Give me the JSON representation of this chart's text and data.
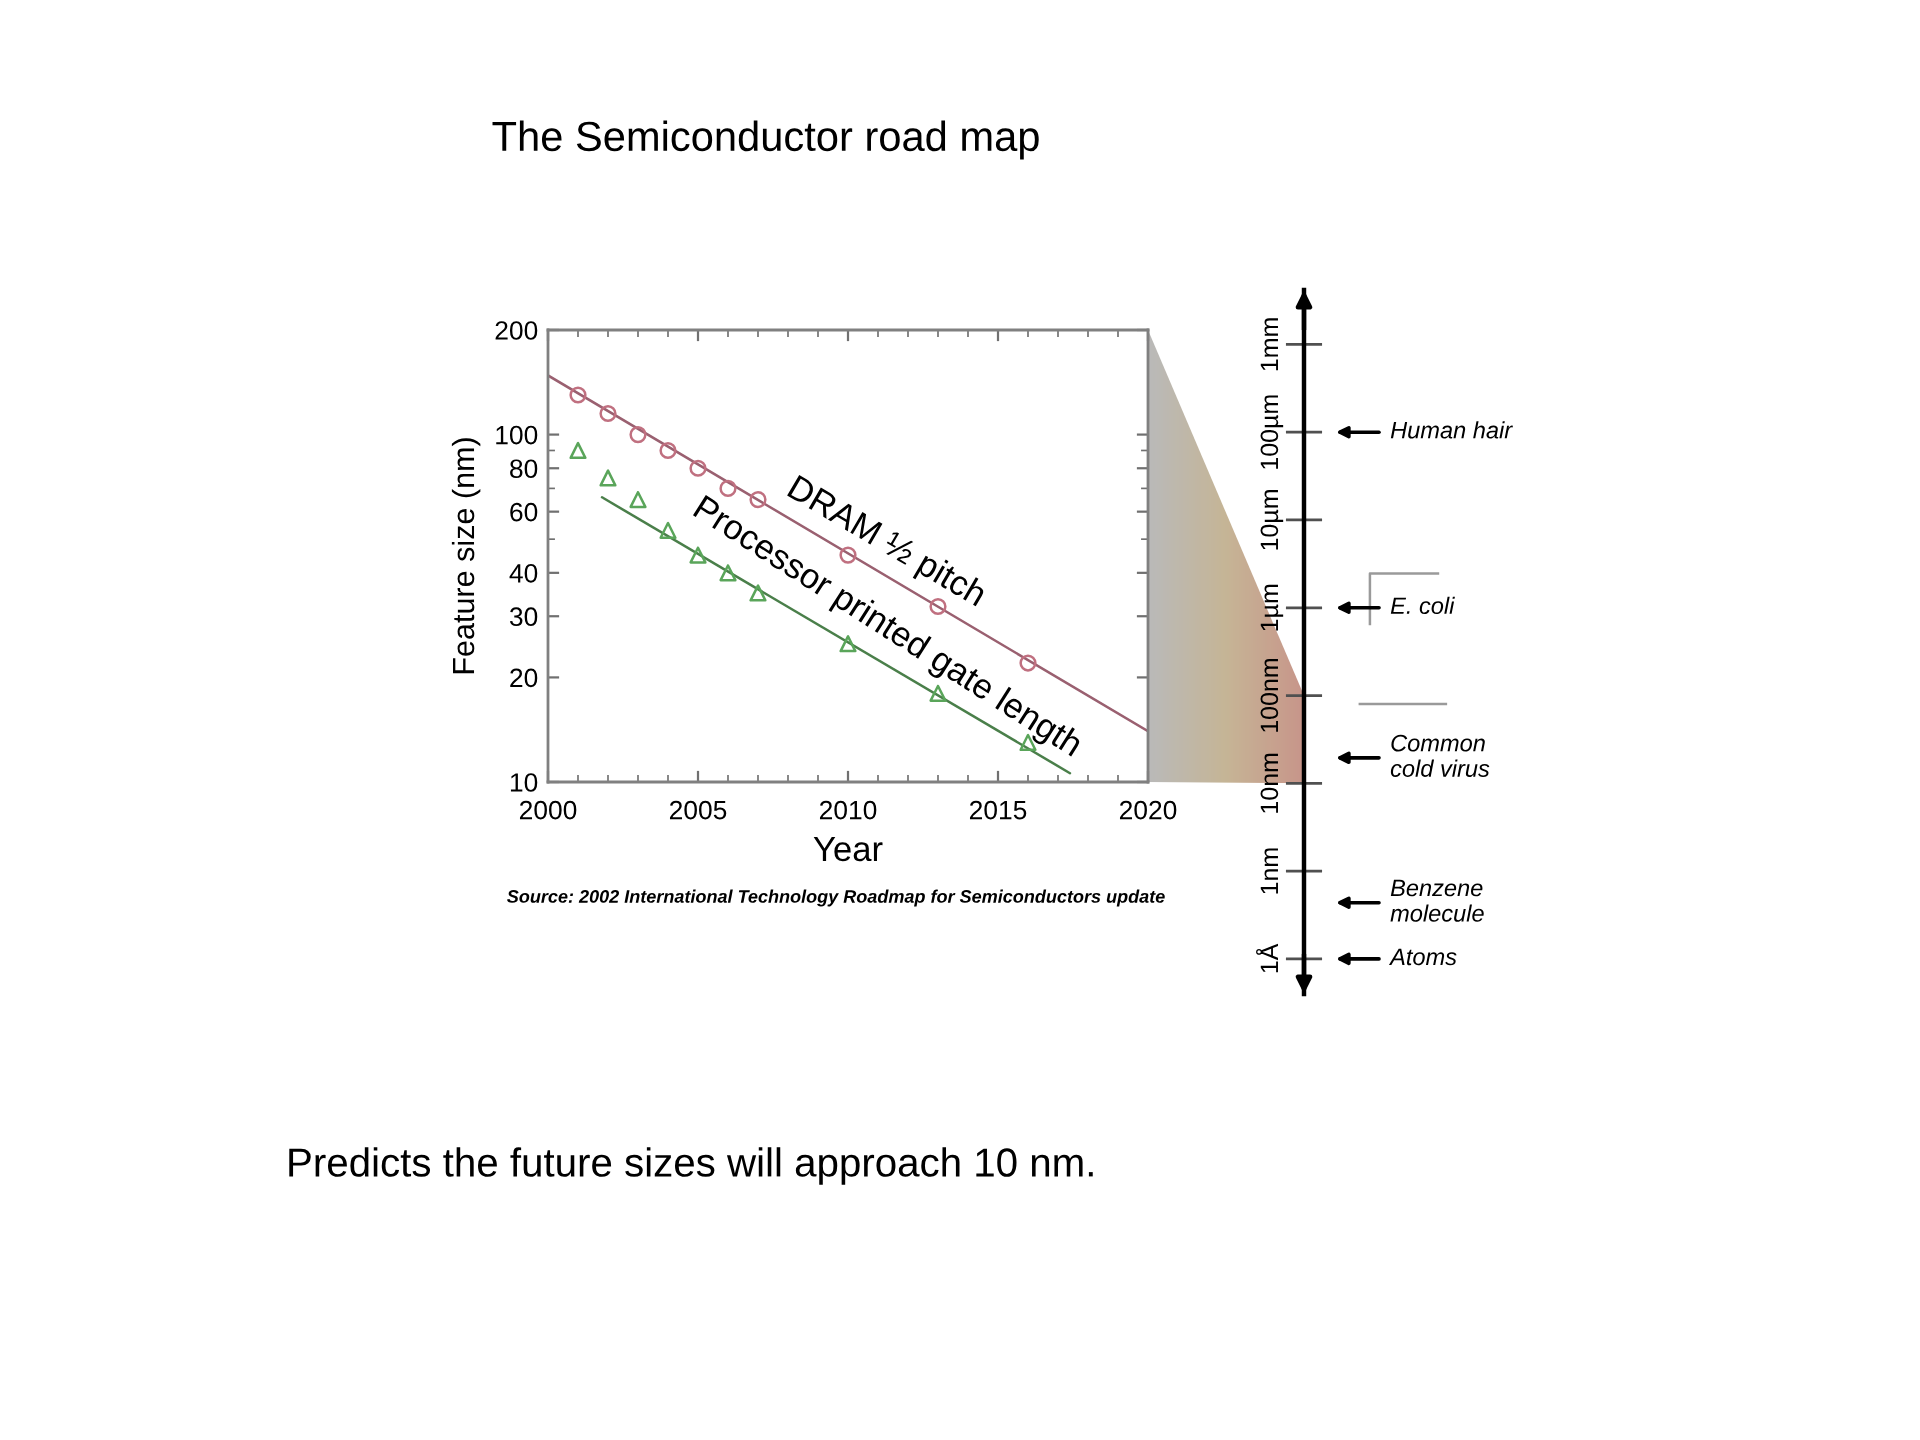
{
  "chart_data": [
    {
      "type": "scatter",
      "title": "The Semiconductor road map",
      "xlabel": "Year",
      "ylabel": "Feature size (nm)",
      "log": "y",
      "xlim": [
        2000,
        2020
      ],
      "xticks": [
        2000,
        {
          "value": 2001,
          "label": null
        },
        {
          "value": 2002,
          "label": null
        },
        {
          "value": 2003,
          "label": null
        },
        {
          "value": 2004,
          "label": null
        },
        2005,
        {
          "value": 2006,
          "label": null
        },
        {
          "value": 2007,
          "label": null
        },
        {
          "value": 2008,
          "label": null
        },
        {
          "value": 2009,
          "label": null
        },
        2010,
        {
          "value": 2011,
          "label": null
        },
        {
          "value": 2012,
          "label": null
        },
        {
          "value": 2013,
          "label": null
        },
        {
          "value": 2014,
          "label": null
        },
        2015,
        {
          "value": 2016,
          "label": null
        },
        {
          "value": 2017,
          "label": null
        },
        {
          "value": 2018,
          "label": null
        },
        {
          "value": 2019,
          "label": null
        },
        2020
      ],
      "ylim": [
        10,
        200
      ],
      "yticks": [
        10,
        20,
        30,
        40,
        {
          "value": 50,
          "label": null
        },
        60,
        {
          "value": 70,
          "label": null
        },
        80,
        {
          "value": 90,
          "label": null
        },
        100,
        200
      ],
      "series": [
        {
          "type": "scatter",
          "name": "DRAM ½ pitch",
          "marker": "circle",
          "color": "#c07080",
          "x": [
            2001,
            2002,
            2003,
            2004,
            2005,
            2006,
            2007,
            2010,
            2013,
            2016
          ],
          "values": [
            130,
            115,
            100,
            90,
            80,
            70,
            65,
            45,
            32,
            22
          ]
        },
        {
          "type": "scatter",
          "name": "Processor printed gate length",
          "marker": "triangle",
          "color": "#5aa55a",
          "x": [
            2001,
            2002,
            2003,
            2004,
            2005,
            2006,
            2007,
            2010,
            2013,
            2016
          ],
          "values": [
            90,
            75,
            65,
            53,
            45,
            40,
            35,
            25,
            18,
            13
          ]
        },
        {
          "type": "line",
          "marker": "none",
          "line_style": "solid",
          "color": "#9a6070",
          "x": [
            2000,
            2020
          ],
          "values": [
            148,
            14
          ]
        },
        {
          "type": "line",
          "marker": "none",
          "line_style": "solid",
          "color": "#4a7f4a",
          "x": [
            2001.8,
            2017.4
          ],
          "values": [
            66,
            10.6
          ]
        }
      ],
      "annotations": [
        "Source: 2002 International Technology Roadmap for Semiconductors update",
        "Predicts the future sizes will approach 10 nm."
      ]
    },
    {
      "type": "other",
      "categories": [
        "1mm",
        "100µm",
        "10µm",
        "1µm",
        "100nm",
        "10nm",
        "1nm",
        "1Å"
      ],
      "annotations": [
        {
          "text": "Human hair",
          "y": "100µm"
        },
        {
          "text": "E. coli",
          "y": "1µm"
        },
        "Common\ncold virus",
        "Benzene\nmolecule",
        {
          "text": "Atoms",
          "y": "1Å"
        }
      ]
    }
  ]
}
